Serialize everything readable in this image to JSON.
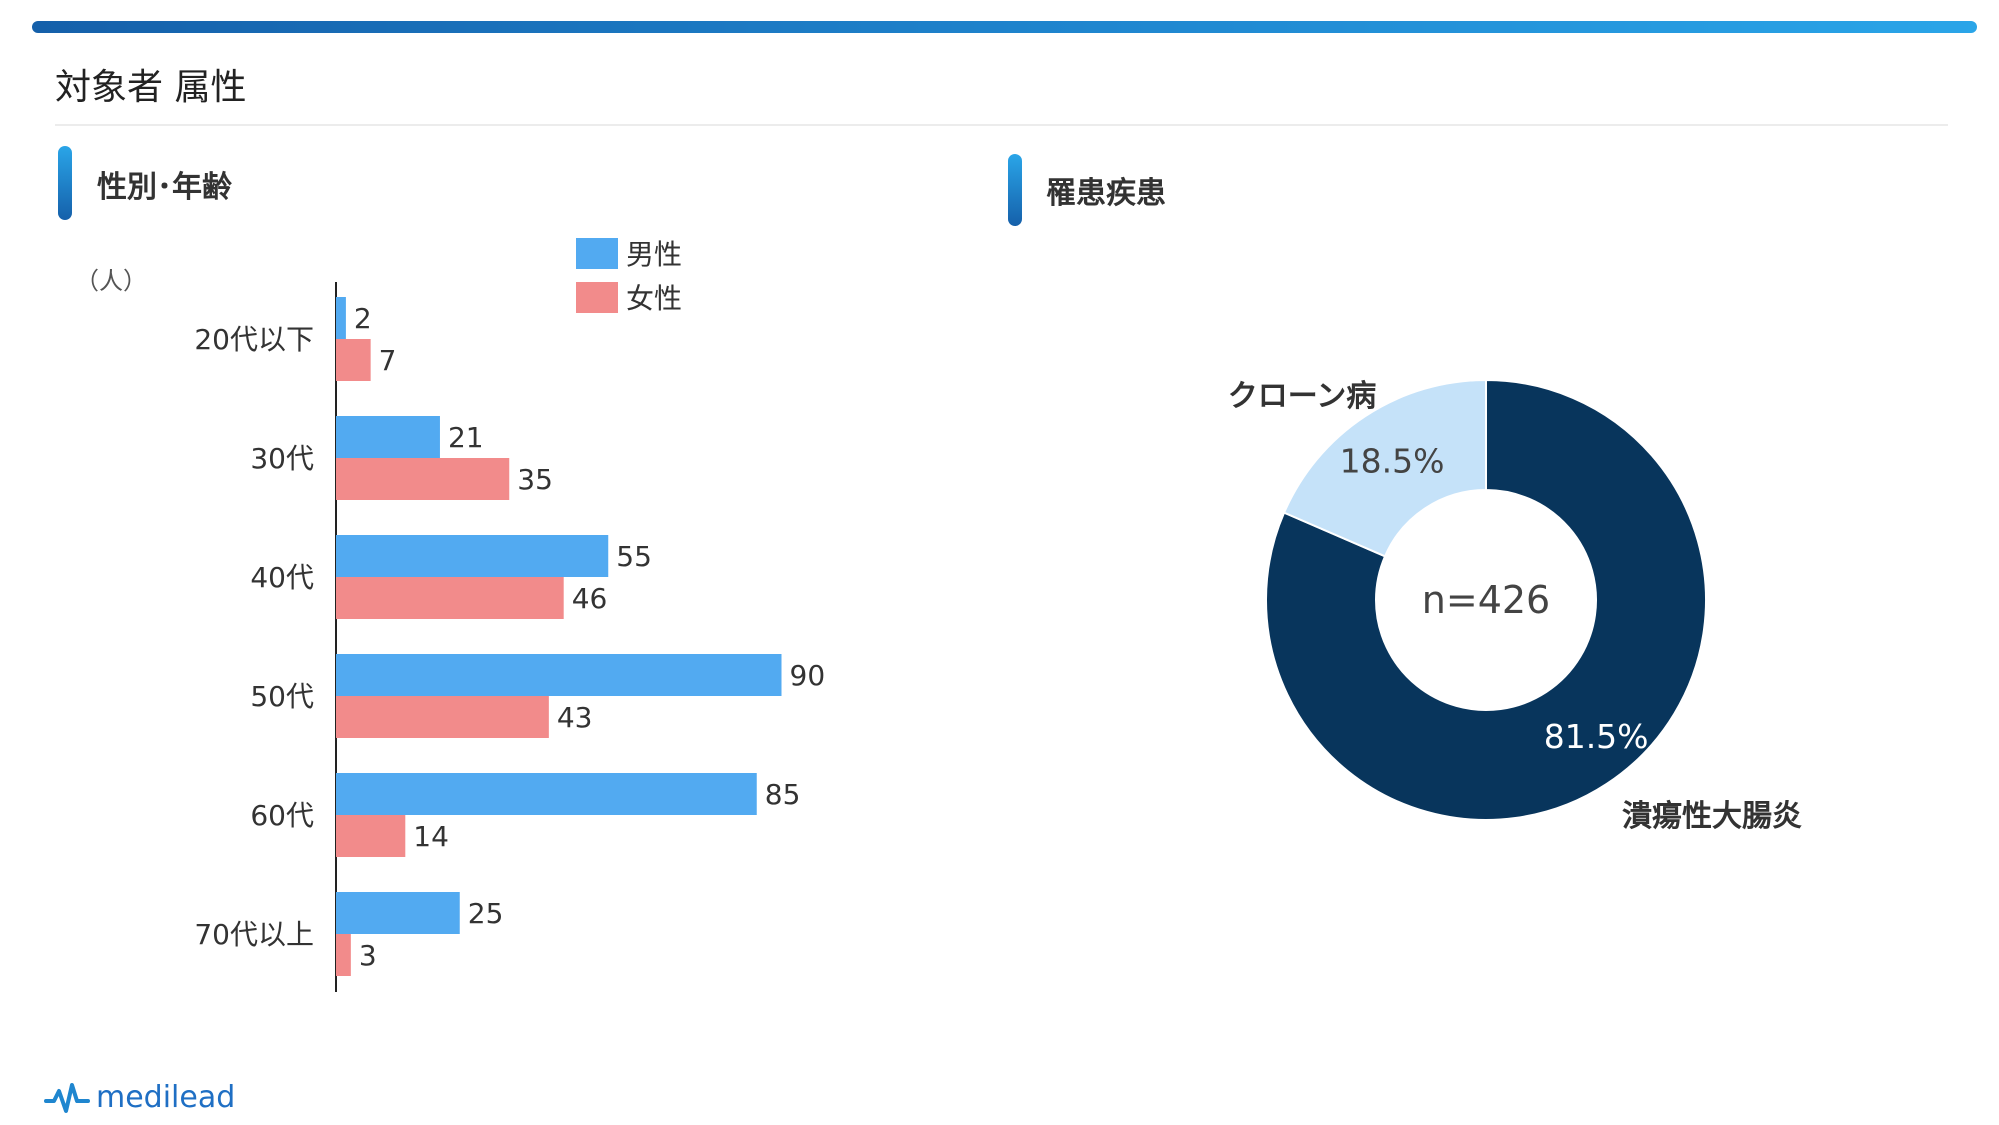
{
  "page": {
    "title": "対象者 属性",
    "logo_text": "medilead"
  },
  "colors": {
    "male": "#52aaf1",
    "female": "#f28b8b",
    "ulcerative_colitis": "#08355c",
    "crohns": "#c5e2f9",
    "accent": "#1f86cf"
  },
  "left_section": {
    "title": "性別･年齢"
  },
  "right_section": {
    "title": "罹患疾患"
  },
  "chart_data": [
    {
      "type": "bar",
      "orientation": "horizontal",
      "unit_label": "（人）",
      "categories": [
        "20代以下",
        "30代",
        "40代",
        "50代",
        "60代",
        "70代以上"
      ],
      "series": [
        {
          "name": "男性",
          "values": [
            2,
            21,
            55,
            90,
            85,
            25
          ],
          "color": "#52aaf1"
        },
        {
          "name": "女性",
          "values": [
            7,
            35,
            46,
            43,
            14,
            3
          ],
          "color": "#f28b8b"
        }
      ],
      "legend": "top",
      "grid": false
    },
    {
      "type": "pie",
      "style": "donut",
      "center_label": "n=426",
      "slices": [
        {
          "name": "潰瘍性大腸炎",
          "percent": 81.5,
          "label": "81.5%",
          "color": "#08355c"
        },
        {
          "name": "クローン病",
          "percent": 18.5,
          "label": "18.5%",
          "color": "#c5e2f9"
        }
      ]
    }
  ]
}
